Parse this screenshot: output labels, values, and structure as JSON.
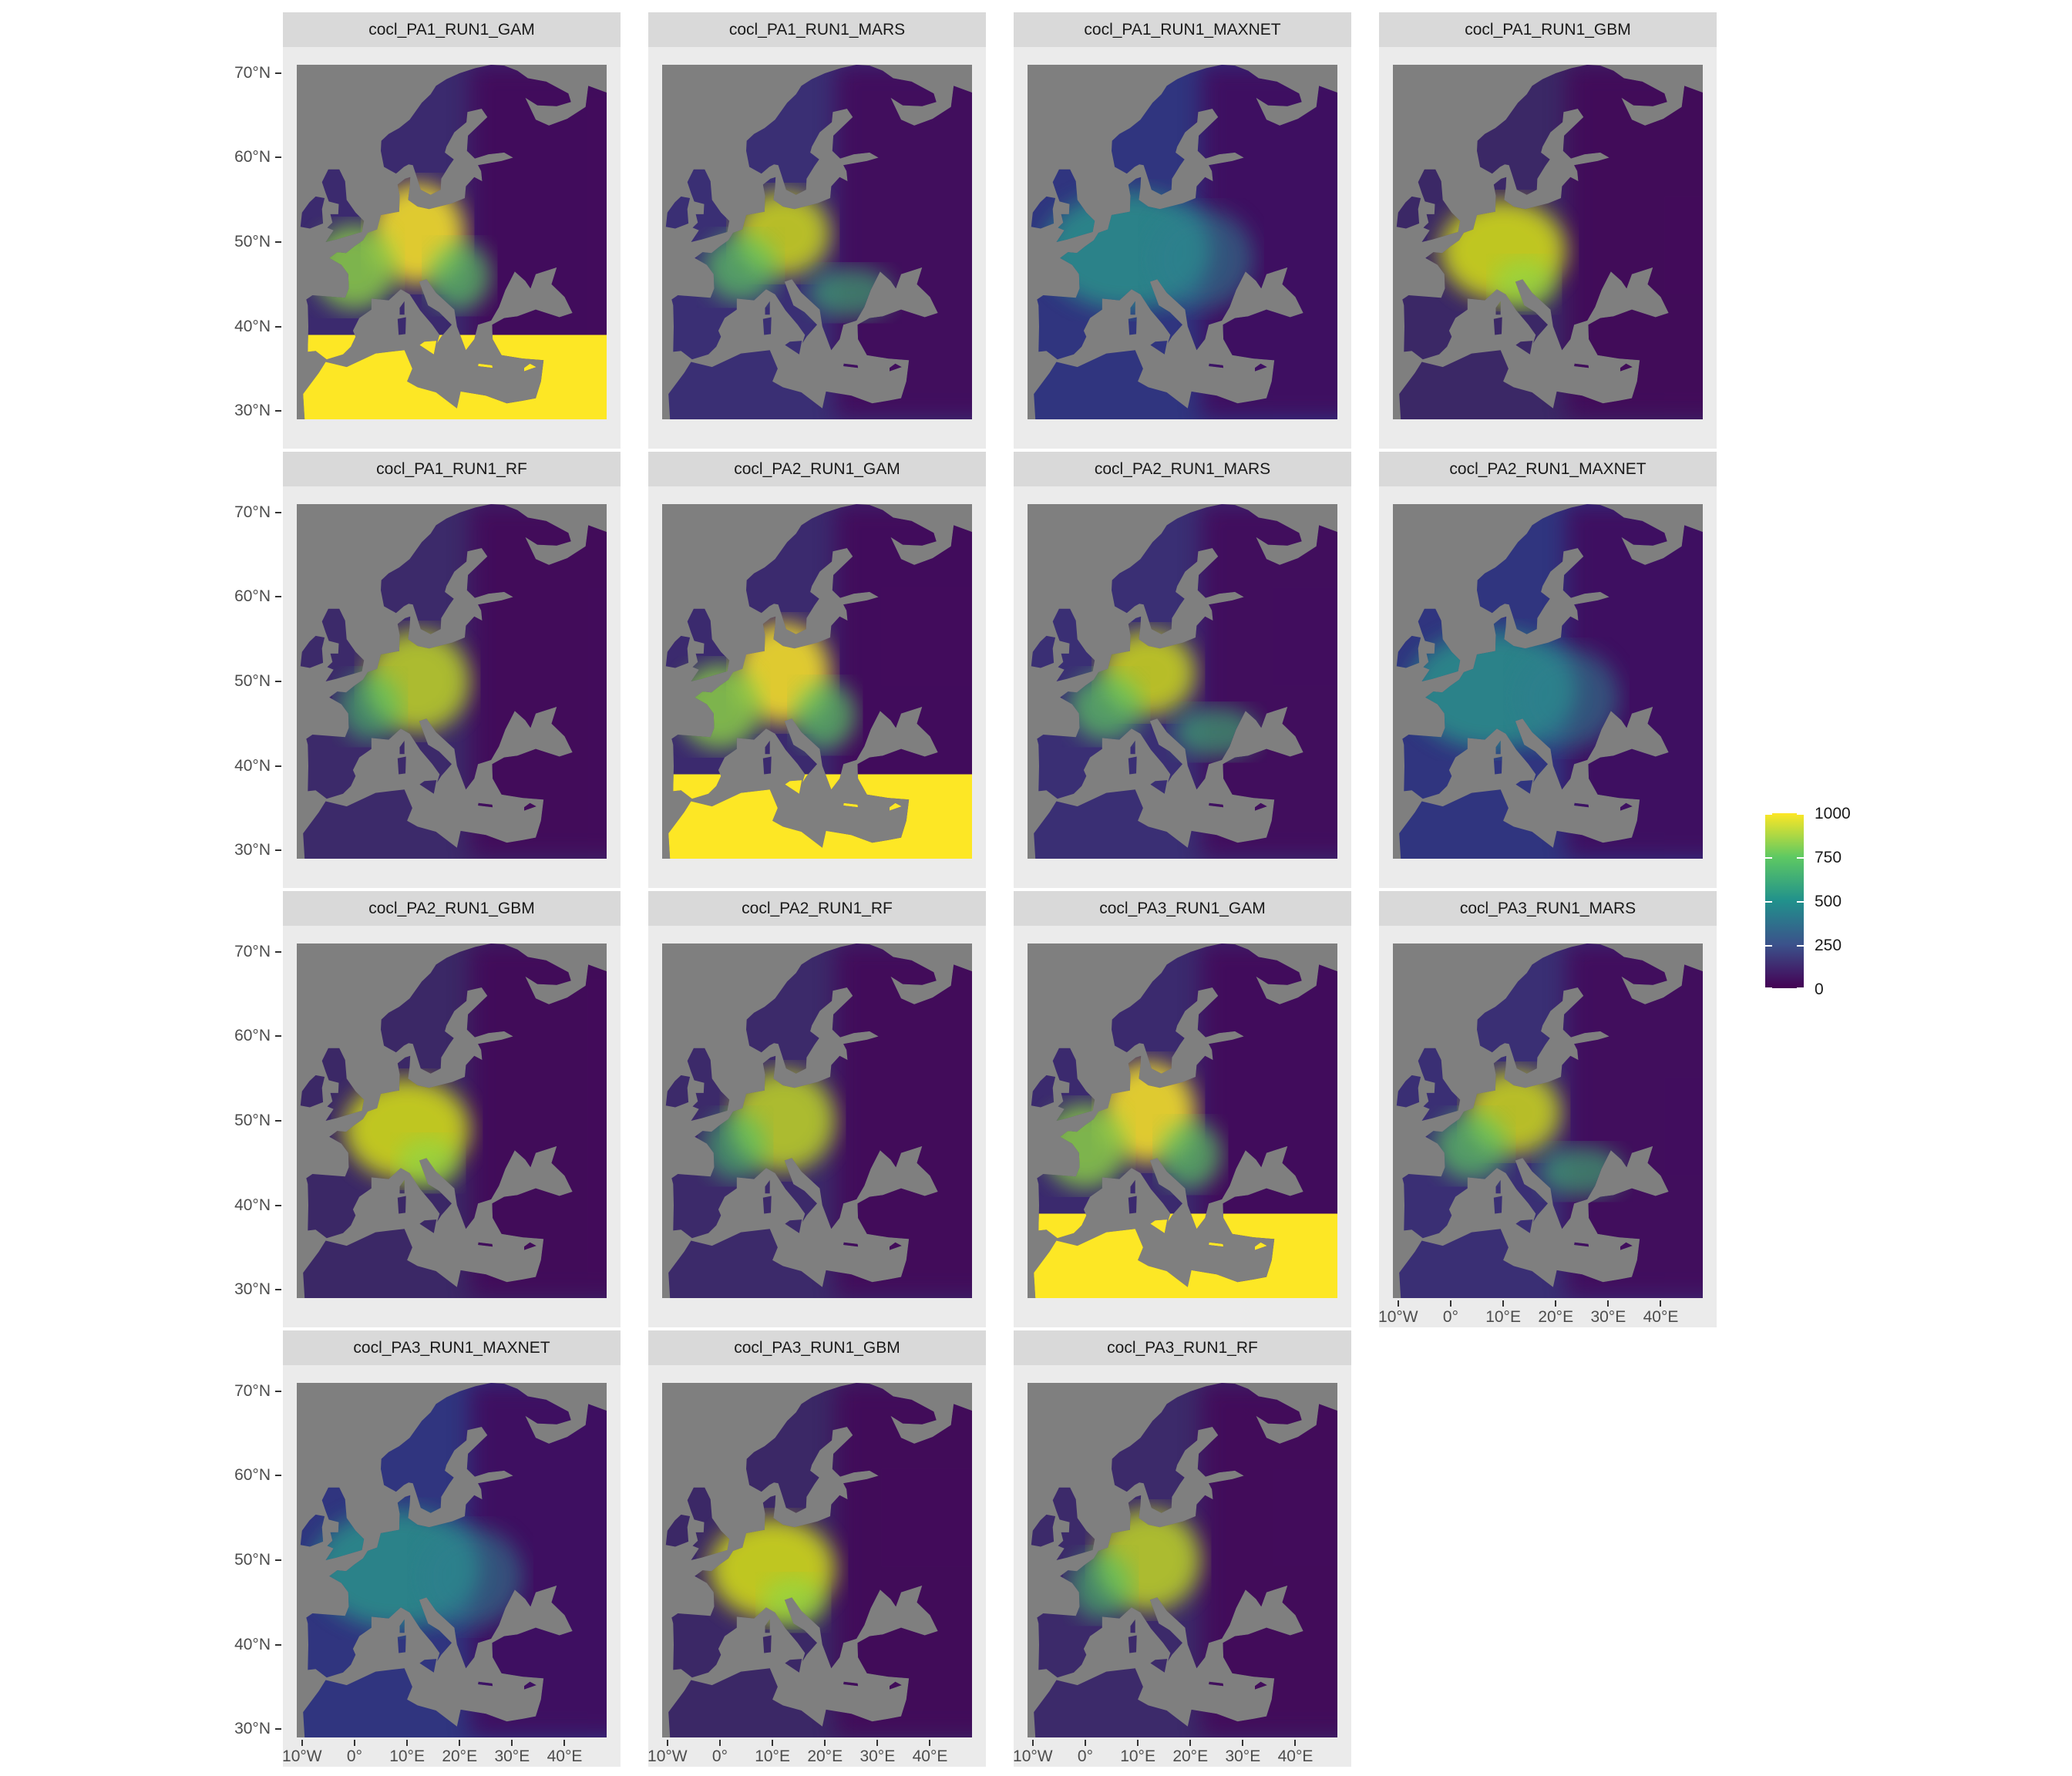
{
  "panels": [
    {
      "title": "cocl_PA1_RUN1_GAM",
      "model": "GAM"
    },
    {
      "title": "cocl_PA1_RUN1_MARS",
      "model": "MARS"
    },
    {
      "title": "cocl_PA1_RUN1_MAXNET",
      "model": "MAXNET"
    },
    {
      "title": "cocl_PA1_RUN1_GBM",
      "model": "GBM"
    },
    {
      "title": "cocl_PA1_RUN1_RF",
      "model": "RF"
    },
    {
      "title": "cocl_PA2_RUN1_GAM",
      "model": "GAM"
    },
    {
      "title": "cocl_PA2_RUN1_MARS",
      "model": "MARS"
    },
    {
      "title": "cocl_PA2_RUN1_MAXNET",
      "model": "MAXNET"
    },
    {
      "title": "cocl_PA2_RUN1_GBM",
      "model": "GBM"
    },
    {
      "title": "cocl_PA2_RUN1_RF",
      "model": "RF"
    },
    {
      "title": "cocl_PA3_RUN1_GAM",
      "model": "GAM"
    },
    {
      "title": "cocl_PA3_RUN1_MARS",
      "model": "MARS"
    },
    {
      "title": "cocl_PA3_RUN1_MAXNET",
      "model": "MAXNET"
    },
    {
      "title": "cocl_PA3_RUN1_GBM",
      "model": "GBM"
    },
    {
      "title": "cocl_PA3_RUN1_RF",
      "model": "RF"
    }
  ],
  "axes": {
    "y_ticks": [
      "70°N",
      "60°N",
      "50°N",
      "40°N",
      "30°N"
    ],
    "x_ticks": [
      "10°W",
      "0°",
      "10°E",
      "20°E",
      "30°E",
      "40°E"
    ],
    "lat_range": [
      29,
      71
    ],
    "lon_range": [
      -11,
      48
    ]
  },
  "legend": {
    "labels": [
      "1000",
      "750",
      "500",
      "250",
      "0"
    ],
    "min": 0,
    "max": 1000,
    "colors": [
      "#440154",
      "#3b528b",
      "#21918c",
      "#5ec962",
      "#fde725"
    ]
  },
  "colors": {
    "sea": "#7f7f7f",
    "panel_bg": "#ebebeb",
    "strip_bg": "#d9d9d9"
  }
}
